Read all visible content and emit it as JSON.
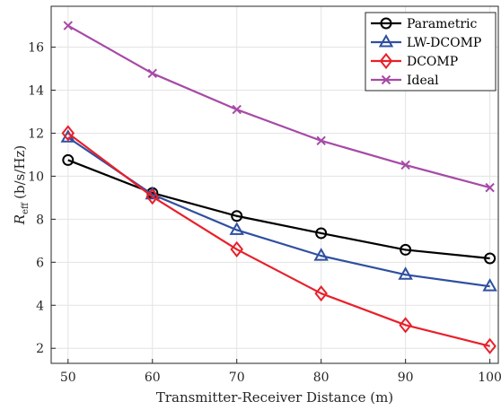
{
  "chart_data": {
    "type": "line",
    "title": "",
    "xlabel": "Transmitter-Receiver Distance (m)",
    "ylabel_symbol": "R",
    "ylabel_subscript": "eff",
    "ylabel_unit": "(b/s/Hz)",
    "x": [
      50,
      60,
      70,
      80,
      90,
      100
    ],
    "xlim": [
      48,
      101
    ],
    "ylim": [
      1.3,
      17.9
    ],
    "xticks": [
      50,
      60,
      70,
      80,
      90,
      100
    ],
    "yticks": [
      2,
      4,
      6,
      8,
      10,
      12,
      14,
      16
    ],
    "grid": true,
    "legend_position": "top-right",
    "series": [
      {
        "name": "Parametric",
        "color": "#000000",
        "marker": "circle",
        "values": [
          10.75,
          9.22,
          8.15,
          7.35,
          6.58,
          6.18
        ]
      },
      {
        "name": "LW-DCOMP",
        "color": "#2f4fa0",
        "marker": "triangle",
        "values": [
          11.8,
          9.15,
          7.5,
          6.3,
          5.42,
          4.88
        ]
      },
      {
        "name": "DCOMP",
        "color": "#e8202a",
        "marker": "diamond",
        "values": [
          12.0,
          9.05,
          6.6,
          4.55,
          3.08,
          2.1
        ]
      },
      {
        "name": "Ideal",
        "color": "#a64aa6",
        "marker": "x",
        "values": [
          17.0,
          14.78,
          13.1,
          11.65,
          10.52,
          9.47
        ]
      }
    ]
  }
}
